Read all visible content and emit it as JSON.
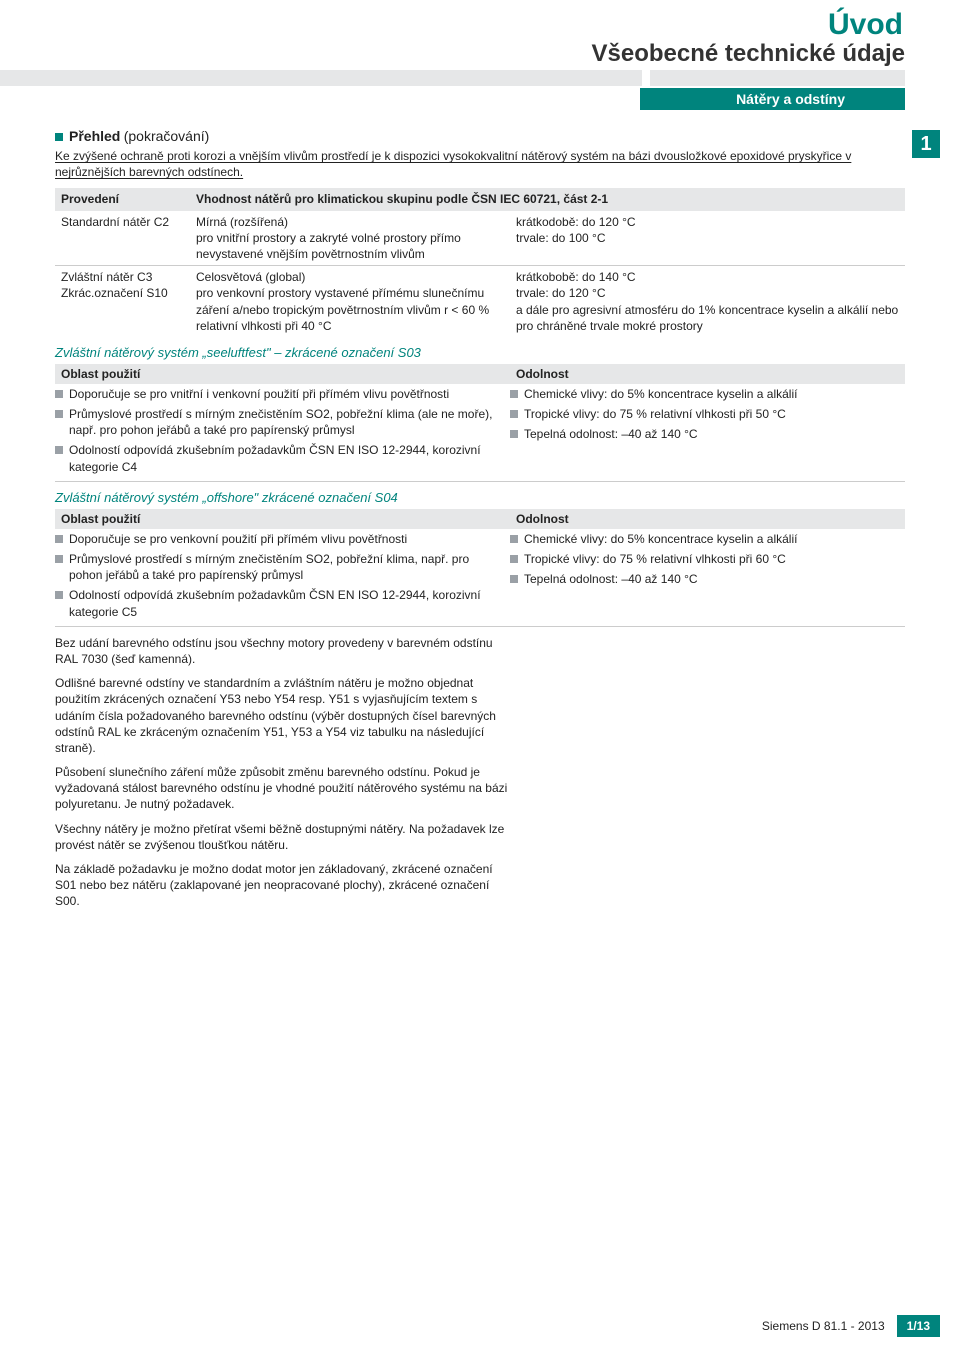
{
  "header": {
    "title": "Úvod",
    "subtitle": "Všeobecné technické údaje",
    "band": "Nátěry a odstíny"
  },
  "page_badge": "1",
  "overview": {
    "heading_bold": "Přehled",
    "heading_rest": "(pokračování)",
    "intro": "Ke zvýšené ochraně proti korozi a vnějším vlivům prostředí je k dispozici vysokokvalitní nátěrový systém na bázi dvousložkové epoxidové pryskyřice v nejrůznějších barevných odstínech."
  },
  "table1": {
    "col_a": "Provedení",
    "col_b": "Vhodnost nátěrů pro klimatickou skupinu podle ČSN IEC 60721, část 2-1",
    "rows": [
      {
        "a": "Standardní nátěr C2",
        "b": "Mírná (rozšířená)\npro vnitřní prostory a zakryté volné prostory přímo nevystavené vnějším povětrnostním vlivům",
        "c": "krátkodobě: do 120 °C\ntrvale: do 100 °C"
      },
      {
        "a": "Zvláštní nátěr    C3\nZkrác.označení S10",
        "b": "Celosvětová (global)\npro venkovní prostory vystavené přímému slunečnímu záření a/nebo tropickým povětrnostním vlivům r < 60 % relativní vlhkosti při 40 °C",
        "c": "krátkobobě: do 140 °C\ntrvale:           do 120 °C\na dále pro agresivní atmosféru do 1% koncentrace kyselin a alkálií nebo pro chráněné trvale mokré prostory"
      }
    ]
  },
  "s03": {
    "title": "Zvláštní nátěrový systém „seeluftfest\" – zkrácené označení S03",
    "left_hdr": "Oblast použití",
    "right_hdr": "Odolnost",
    "left": [
      "Doporučuje se pro vnitřní i venkovní použití při přímém vlivu povětřnosti",
      "Průmyslové prostředí s mírným znečistěním  SO2, pobřežní klima (ale ne moře), např. pro pohon jeřábů a také pro papírenský průmysl",
      "Odolností odpovídá zkušebním požadavkům ČSN EN ISO 12-2944, korozivní  kategorie C4"
    ],
    "right": [
      "Chemické vlivy: do 5% koncentrace kyselin a alkálií",
      "Tropické vlivy:  do 75 % relativní vlhkosti při 50 °C",
      "Tepelná odolnost:   –40 až 140 °C"
    ]
  },
  "s04": {
    "title": "Zvláštní nátěrový systém „offshore\" zkrácené označení S04",
    "left_hdr": "Oblast použití",
    "right_hdr": "Odolnost",
    "left": [
      "Doporučuje se pro venkovní použití při přímém vlivu povětřnosti",
      "Průmyslové prostředí s mírným znečistěním  SO2, pobřežní klima, např. pro pohon jeřábů a také pro papírenský průmysl",
      "Odolností odpovídá zkušebním požadavkům ČSN EN ISO 12-2944, korozivní  kategorie  C5"
    ],
    "right": [
      "Chemické vlivy: do 5% koncentrace kyselin a alkálií",
      "Tropické vlivy: do 75 % relativní vlhkosti při 60 °C",
      "Tepelná odolnost: –40 až 140 °C"
    ]
  },
  "paras": [
    "Bez udání barevného odstínu jsou všechny motory provedeny v barevném odstínu RAL 7030 (šeď kamenná).",
    "Odlišné barevné odstíny ve standardním a zvláštním nátěru je možno objednat použitím zkrácených označení  Y53 nebo Y54 resp. Y51 s vyjasňujícím textem s udáním čísla požadovaného barevného odstínu  (výběr dostupných  čísel barevných odstínů RAL ke zkráceným označením Y51, Y53 a Y54 viz tabulku na následující straně).",
    "Působení slunečního záření může způsobit změnu barevného odstínu. Pokud je vyžadovaná stálost barevného odstínu je vhodné použití nátěrového systému na bázi polyuretanu. Je nutný požadavek.",
    "Všechny nátěry je možno přetírat všemi běžně dostupnými nátěry. Na požadavek lze provést nátěr se zvýšenou tloušťkou nátěru.",
    "Na základě požadavku je možno dodat motor jen základovaný, zkrácené označení S01 nebo bez nátěru (zaklapované jen neopracované plochy), zkrácené označení S00."
  ],
  "footer": {
    "doc": "Siemens D 81.1 - 2013",
    "page": "1/13"
  },
  "colors": {
    "brand": "#00847d",
    "grayband": "#e6e7e8"
  }
}
